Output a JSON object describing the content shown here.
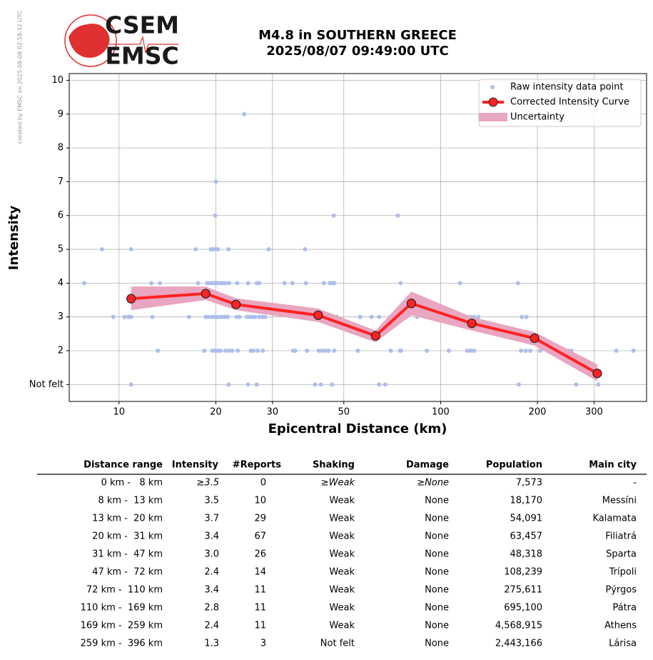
{
  "credit": "created by EMSC on 2025-08-08 02:58:32 UTC",
  "logo": [
    "CSEM",
    "EMSC"
  ],
  "chart_data": {
    "type": "line",
    "title": "M4.8 in SOUTHERN GREECE",
    "subtitle": "2025/08/07 09:49:00 UTC",
    "x_label": "Epicentral Distance (km)",
    "y_label": "Intensity",
    "xscale": "log",
    "xlim": [
      7,
      437
    ],
    "ylim": [
      0.5,
      10.2
    ],
    "xticks": [
      10,
      20,
      30,
      50,
      100,
      200,
      300
    ],
    "yticks": [
      {
        "value": 1,
        "label": "Not felt"
      },
      2,
      3,
      4,
      5,
      6,
      7,
      8,
      9,
      10
    ],
    "grid": true,
    "legend": "upper right",
    "series": [
      {
        "name": "Raw intensity data point",
        "type": "scatter",
        "color": "#aebee9",
        "x": [
          24.5,
          20,
          19.9,
          46.5,
          73.6,
          8.85,
          10.9,
          17.3,
          19.3,
          19.6,
          20,
          20.3,
          21.9,
          29.2,
          37.9,
          7.8,
          12.6,
          13.4,
          17.6,
          18.8,
          19.1,
          19.5,
          19.8,
          20.1,
          20.4,
          20.8,
          21.1,
          21.5,
          22.0,
          23.3,
          25.2,
          26.8,
          27.3,
          32.7,
          34.6,
          38.1,
          43.3,
          45.3,
          46.0,
          46.7,
          75.1,
          115,
          174,
          9.6,
          10.4,
          10.7,
          10.9,
          12.7,
          16.5,
          18.6,
          18.9,
          19.4,
          19.8,
          20.2,
          20.6,
          21.0,
          21.4,
          21.8,
          23.2,
          23.7,
          25.0,
          25.5,
          26.0,
          26.5,
          27.3,
          28.0,
          28.5,
          42.9,
          47.6,
          56.2,
          61.0,
          64.4,
          69.7,
          74.5,
          84.5,
          121,
          124,
          127,
          131,
          179,
          185,
          13.2,
          18.4,
          19.5,
          19.9,
          20.3,
          20.7,
          21.4,
          22.0,
          22.5,
          23.4,
          25.7,
          26.2,
          27.0,
          28.0,
          34.8,
          35.3,
          38.4,
          41.8,
          42.8,
          43.7,
          44.8,
          46.7,
          55.3,
          70,
          74.8,
          75.3,
          90.6,
          106,
          121,
          124,
          127,
          178,
          184,
          190,
          204,
          250,
          255,
          352,
          398,
          10.9,
          21.9,
          25.2,
          26.8,
          40.7,
          42.4,
          46.0,
          64.4,
          67.3,
          175,
          264,
          309
        ],
        "values": [
          9,
          7,
          6,
          6,
          6,
          5,
          5,
          5,
          5,
          5,
          5,
          5,
          5,
          5,
          5,
          4,
          4,
          4,
          4,
          4,
          4,
          4,
          4,
          4,
          4,
          4,
          4,
          4,
          4,
          4,
          4,
          4,
          4,
          4,
          4,
          4,
          4,
          4,
          4,
          4,
          4,
          4,
          4,
          3,
          3,
          3,
          3,
          3,
          3,
          3,
          3,
          3,
          3,
          3,
          3,
          3,
          3,
          3,
          3,
          3,
          3,
          3,
          3,
          3,
          3,
          3,
          3,
          3,
          3,
          3,
          3,
          3,
          3,
          3,
          3,
          3,
          3,
          3,
          3,
          3,
          3,
          2,
          2,
          2,
          2,
          2,
          2,
          2,
          2,
          2,
          2,
          2,
          2,
          2,
          2,
          2,
          2,
          2,
          2,
          2,
          2,
          2,
          2,
          2,
          2,
          2,
          2,
          2,
          2,
          2,
          2,
          2,
          2,
          2,
          2,
          2,
          2,
          2,
          2,
          2,
          1,
          1,
          1,
          1,
          1,
          1,
          1,
          1,
          1,
          1,
          1,
          1
        ]
      },
      {
        "name": "Corrected Intensity Curve",
        "type": "line",
        "color": "#ff2222",
        "x": [
          10.9,
          18.6,
          23.1,
          41.6,
          62.8,
          81.1,
          125,
          196,
          307
        ],
        "values": [
          3.54,
          3.69,
          3.37,
          3.05,
          2.44,
          3.4,
          2.81,
          2.37,
          1.33
        ]
      },
      {
        "name": "Uncertainty",
        "type": "band",
        "color": "#e8a6c0",
        "x": [
          10.9,
          18.6,
          23.1,
          41.6,
          62.8,
          81.1,
          125,
          196,
          307
        ],
        "lower": [
          3.2,
          3.5,
          3.2,
          2.85,
          2.25,
          3.05,
          2.6,
          2.15,
          1.1
        ],
        "upper": [
          3.9,
          3.9,
          3.55,
          3.25,
          2.6,
          3.75,
          3.0,
          2.55,
          1.6
        ]
      }
    ]
  },
  "table": {
    "header": [
      "Distance range",
      "Intensity",
      "#Reports",
      "Shaking",
      "Damage",
      "Population",
      "Main city"
    ],
    "rows": [
      [
        "0 km -   8 km",
        "≥3.5",
        "0",
        "≥Weak",
        "≥None",
        "7,573",
        "-"
      ],
      [
        "8 km -  13 km",
        "3.5",
        "10",
        "Weak",
        "None",
        "18,170",
        "Messíni"
      ],
      [
        "13 km -  20 km",
        "3.7",
        "29",
        "Weak",
        "None",
        "54,091",
        "Kalamata"
      ],
      [
        "20 km -  31 km",
        "3.4",
        "67",
        "Weak",
        "None",
        "63,457",
        "Filiatrá"
      ],
      [
        "31 km -  47 km",
        "3.0",
        "26",
        "Weak",
        "None",
        "48,318",
        "Sparta"
      ],
      [
        "47 km -  72 km",
        "2.4",
        "14",
        "Weak",
        "None",
        "108,239",
        "Trípoli"
      ],
      [
        "72 km -  110 km",
        "3.4",
        "11",
        "Weak",
        "None",
        "275,611",
        "Pýrgos"
      ],
      [
        "110 km -  169 km",
        "2.8",
        "11",
        "Weak",
        "None",
        "695,100",
        "Pátra"
      ],
      [
        "169 km -  259 km",
        "2.4",
        "11",
        "Weak",
        "None",
        "4,568,915",
        "Athens"
      ],
      [
        "259 km -  396 km",
        "1.3",
        "3",
        "Not felt",
        "None",
        "2,443,166",
        "Lárisa"
      ]
    ]
  }
}
